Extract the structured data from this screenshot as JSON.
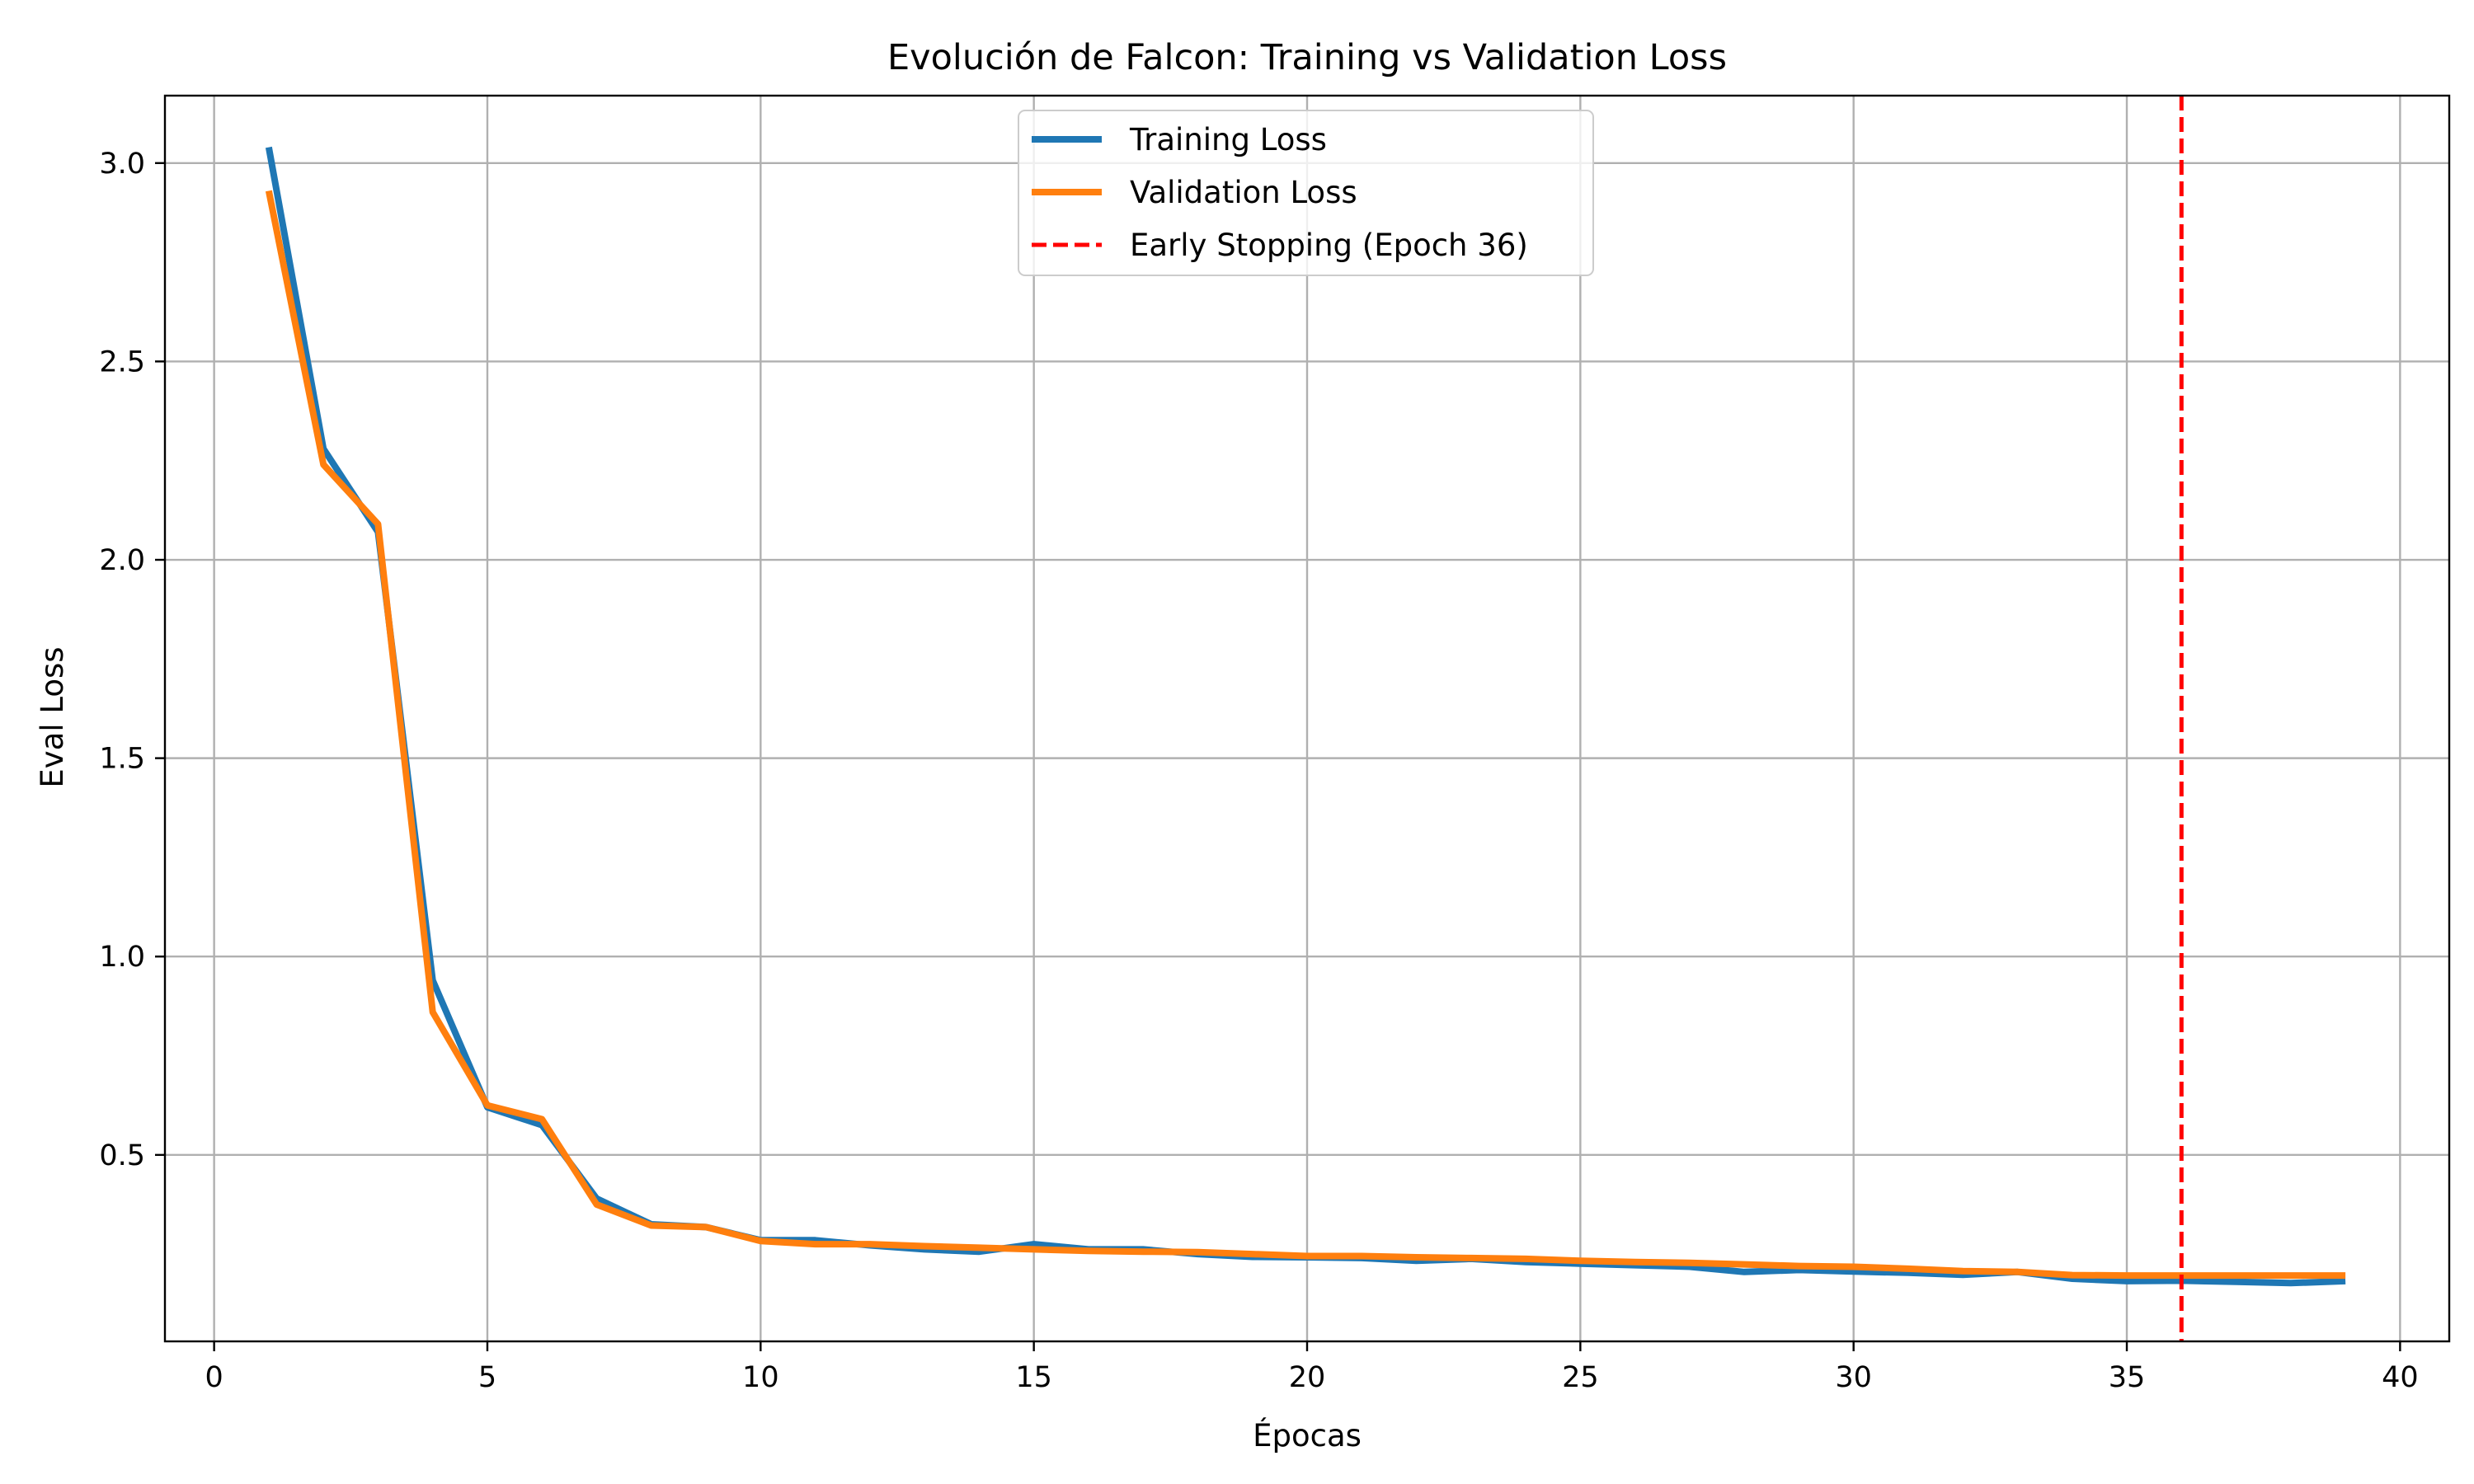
{
  "chart_data": {
    "type": "line",
    "title": "Evolución de Falcon: Training vs Validation Loss",
    "xlabel": "Épocas",
    "ylabel": "Eval Loss",
    "xlim": [
      -0.9,
      40.9
    ],
    "ylim": [
      0.03,
      3.17
    ],
    "xticks": [
      0,
      5,
      10,
      15,
      20,
      25,
      30,
      35,
      40
    ],
    "yticks": [
      0.5,
      1.0,
      1.5,
      2.0,
      2.5,
      3.0
    ],
    "ytick_labels": [
      "0.5",
      "1.0",
      "1.5",
      "2.0",
      "2.5",
      "3.0"
    ],
    "grid": true,
    "legend_position": "upper center",
    "x": [
      1,
      2,
      3,
      4,
      5,
      6,
      7,
      8,
      9,
      10,
      11,
      12,
      13,
      14,
      15,
      16,
      17,
      18,
      19,
      20,
      21,
      22,
      23,
      24,
      25,
      26,
      27,
      28,
      29,
      30,
      31,
      32,
      33,
      34,
      35,
      36,
      37,
      38,
      39
    ],
    "series": [
      {
        "name": "Training Loss",
        "color": "#1f77b4",
        "values": [
          3.04,
          2.28,
          2.07,
          0.94,
          0.62,
          0.575,
          0.39,
          0.325,
          0.318,
          0.285,
          0.285,
          0.272,
          0.262,
          0.256,
          0.275,
          0.262,
          0.262,
          0.25,
          0.243,
          0.242,
          0.24,
          0.233,
          0.238,
          0.23,
          0.226,
          0.222,
          0.218,
          0.205,
          0.21,
          0.206,
          0.203,
          0.198,
          0.205,
          0.188,
          0.182,
          0.183,
          0.18,
          0.177,
          0.182
        ]
      },
      {
        "name": "Validation Loss",
        "color": "#ff7f0e",
        "values": [
          2.93,
          2.24,
          2.09,
          0.86,
          0.625,
          0.59,
          0.375,
          0.322,
          0.318,
          0.283,
          0.275,
          0.275,
          0.27,
          0.266,
          0.262,
          0.258,
          0.256,
          0.255,
          0.25,
          0.245,
          0.245,
          0.242,
          0.24,
          0.238,
          0.233,
          0.23,
          0.228,
          0.224,
          0.22,
          0.218,
          0.213,
          0.207,
          0.205,
          0.197,
          0.196,
          0.196,
          0.196,
          0.196,
          0.196
        ]
      }
    ],
    "vline": {
      "x": 36,
      "label": "Early Stopping (Epoch 36)",
      "color": "#ff0000"
    }
  }
}
